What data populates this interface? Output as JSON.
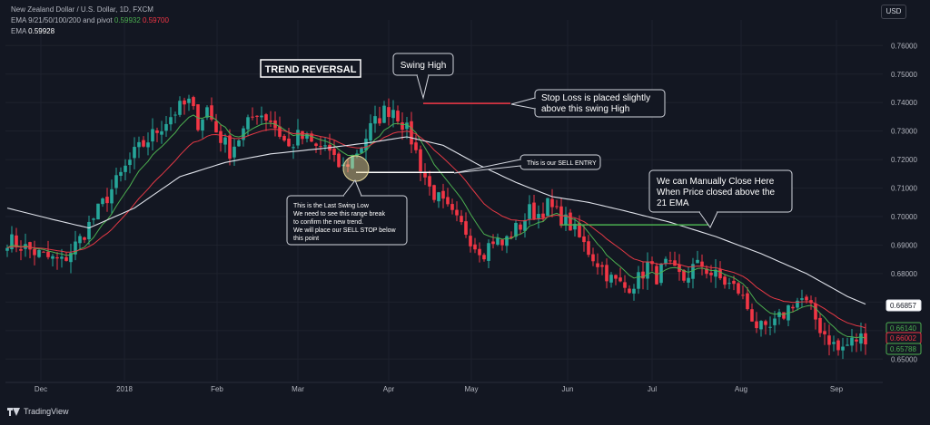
{
  "header": {
    "symbol": "New Zealand Dollar / U.S. Dollar, 1D, FXCM",
    "ema_multi_label": "EMA 9/21/50/100/200 and pivot",
    "ema_multi_value1": "0.59932",
    "ema_multi_value2": "0.59700",
    "ema_label": "EMA",
    "ema_value": "0.59928"
  },
  "currency_button": "USD",
  "branding": "TradingView",
  "colors": {
    "background": "#131722",
    "bull": "#26a69a",
    "bear": "#f23645",
    "ema_fast": "#4caf50",
    "ema_mid": "#e53945",
    "ema_slow": "#e0e3eb",
    "grid": "#1e222d"
  },
  "annotations": {
    "title": "TREND REVERSAL",
    "swing_high": "Swing High",
    "stop_loss": "Stop Loss is placed slightly above this swing High",
    "sell_entry": "This is our SELL ENTRY",
    "swing_low": "This is the Last Swing Low We need to see this range break to confirm the new trend. We will place our SELL STOP below this point",
    "manual_close": "We can Manually Close Here When Price closed above the 21 EMA"
  },
  "chart_data": {
    "type": "candlestick",
    "instrument": "NZD/USD",
    "timeframe": "1D",
    "x_labels": [
      "Dec",
      "2018",
      "Feb",
      "Mar",
      "Apr",
      "May",
      "Jun",
      "Jul",
      "Aug",
      "Sep"
    ],
    "y_ticks": [
      "0.76000",
      "0.75000",
      "0.74000",
      "0.73000",
      "0.72000",
      "0.71000",
      "0.70000",
      "0.69000",
      "0.68000",
      "0.67000",
      "0.66000",
      "0.65000"
    ],
    "ylim": [
      0.645,
      0.769
    ],
    "price_badges": [
      {
        "value": "0.66857",
        "role": "ema-200",
        "color": "#e0e3eb"
      },
      {
        "value": "0.66140",
        "role": "ema-fast",
        "color": "#4caf50"
      },
      {
        "value": "0.66002",
        "role": "ema-mid",
        "color": "#f23645"
      },
      {
        "value": "0.65788",
        "role": "last-price",
        "color": "#4caf50"
      }
    ],
    "levels": {
      "stop_loss": 0.7397,
      "sell_entry": 0.7155,
      "manual_close": 0.6971
    },
    "close_path": [
      [
        0,
        0.692
      ],
      [
        4,
        0.689
      ],
      [
        8,
        0.686
      ],
      [
        12,
        0.684
      ],
      [
        16,
        0.692
      ],
      [
        20,
        0.702
      ],
      [
        24,
        0.712
      ],
      [
        28,
        0.722
      ],
      [
        31,
        0.727
      ],
      [
        34,
        0.732
      ],
      [
        37,
        0.737
      ],
      [
        40,
        0.74
      ],
      [
        42,
        0.733
      ],
      [
        44,
        0.738
      ],
      [
        46,
        0.73
      ],
      [
        49,
        0.723
      ],
      [
        52,
        0.73
      ],
      [
        55,
        0.737
      ],
      [
        58,
        0.734
      ],
      [
        60,
        0.729
      ],
      [
        62,
        0.724
      ],
      [
        64,
        0.728
      ],
      [
        66,
        0.727
      ],
      [
        68,
        0.724
      ],
      [
        70,
        0.725
      ],
      [
        72,
        0.719
      ],
      [
        74,
        0.717
      ],
      [
        76,
        0.721
      ],
      [
        78,
        0.725
      ],
      [
        80,
        0.731
      ],
      [
        83,
        0.737
      ],
      [
        85,
        0.738
      ],
      [
        87,
        0.733
      ],
      [
        89,
        0.727
      ],
      [
        91,
        0.718
      ],
      [
        93,
        0.71
      ],
      [
        95,
        0.706
      ],
      [
        97,
        0.702
      ],
      [
        99,
        0.698
      ],
      [
        101,
        0.695
      ],
      [
        103,
        0.69
      ],
      [
        105,
        0.688
      ],
      [
        107,
        0.692
      ],
      [
        109,
        0.69
      ],
      [
        111,
        0.694
      ],
      [
        113,
        0.697
      ],
      [
        115,
        0.702
      ],
      [
        117,
        0.701
      ],
      [
        119,
        0.704
      ],
      [
        121,
        0.701
      ],
      [
        124,
        0.697
      ],
      [
        127,
        0.69
      ],
      [
        130,
        0.684
      ],
      [
        133,
        0.678
      ],
      [
        136,
        0.675
      ],
      [
        139,
        0.678
      ],
      [
        141,
        0.683
      ],
      [
        143,
        0.679
      ],
      [
        145,
        0.683
      ],
      [
        147,
        0.68
      ],
      [
        149,
        0.678
      ],
      [
        151,
        0.682
      ],
      [
        153,
        0.683
      ],
      [
        155,
        0.68
      ],
      [
        157,
        0.678
      ],
      [
        159,
        0.676
      ],
      [
        161,
        0.674
      ],
      [
        163,
        0.668
      ],
      [
        165,
        0.662
      ],
      [
        167,
        0.659
      ],
      [
        169,
        0.662
      ],
      [
        171,
        0.666
      ],
      [
        173,
        0.67
      ],
      [
        175,
        0.671
      ],
      [
        177,
        0.667
      ],
      [
        179,
        0.661
      ],
      [
        181,
        0.657
      ],
      [
        183,
        0.653
      ],
      [
        185,
        0.655
      ],
      [
        187,
        0.657
      ],
      [
        189,
        0.658
      ]
    ],
    "ema200": [
      [
        0,
        0.703
      ],
      [
        10,
        0.699
      ],
      [
        18,
        0.696
      ],
      [
        28,
        0.703
      ],
      [
        38,
        0.714
      ],
      [
        48,
        0.719
      ],
      [
        58,
        0.722
      ],
      [
        70,
        0.724
      ],
      [
        80,
        0.726
      ],
      [
        88,
        0.728
      ],
      [
        96,
        0.725
      ],
      [
        104,
        0.718
      ],
      [
        112,
        0.712
      ],
      [
        120,
        0.707
      ],
      [
        128,
        0.705
      ],
      [
        136,
        0.702
      ],
      [
        146,
        0.698
      ],
      [
        156,
        0.693
      ],
      [
        166,
        0.687
      ],
      [
        176,
        0.68
      ],
      [
        185,
        0.672
      ],
      [
        190,
        0.6686
      ]
    ]
  }
}
